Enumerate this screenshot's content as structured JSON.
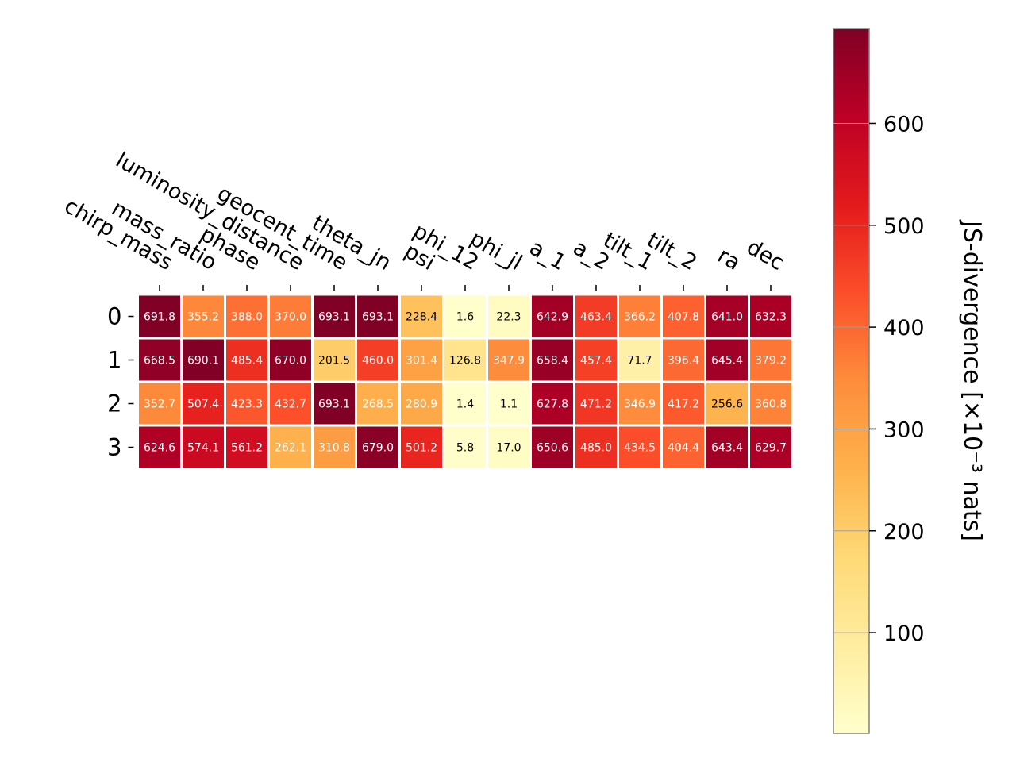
{
  "chart_data": {
    "type": "heatmap",
    "title": "",
    "columns": [
      "chirp_mass",
      "mass_ratio",
      "phase",
      "luminosity_distance",
      "geocent_time",
      "theta_jn",
      "psi",
      "phi_12",
      "phi_jl",
      "a_1",
      "a_2",
      "tilt_1",
      "tilt_2",
      "ra",
      "dec"
    ],
    "rows": [
      "0",
      "1",
      "2",
      "3"
    ],
    "values": [
      [
        691.8,
        355.2,
        388.0,
        370.0,
        693.1,
        693.1,
        228.4,
        1.6,
        22.3,
        642.9,
        463.4,
        366.2,
        407.8,
        641.0,
        632.3
      ],
      [
        668.5,
        690.1,
        485.4,
        670.0,
        201.5,
        460.0,
        301.4,
        126.8,
        347.9,
        658.4,
        457.4,
        71.7,
        396.4,
        645.4,
        379.2
      ],
      [
        352.7,
        507.4,
        423.3,
        432.7,
        693.1,
        268.5,
        280.9,
        1.4,
        1.1,
        627.8,
        471.2,
        346.9,
        417.2,
        256.6,
        360.8
      ],
      [
        624.6,
        574.1,
        561.2,
        262.1,
        310.8,
        679.0,
        501.2,
        5.8,
        17.0,
        650.6,
        485.0,
        434.5,
        404.4,
        643.4,
        629.7
      ]
    ],
    "value_labels": [
      [
        "691.8",
        "355.2",
        "388.0",
        "370.0",
        "693.1",
        "693.1",
        "228.4",
        "1.6",
        "22.3",
        "642.9",
        "463.4",
        "366.2",
        "407.8",
        "641.0",
        "632.3"
      ],
      [
        "668.5",
        "690.1",
        "485.4",
        "670.0",
        "201.5",
        "460.0",
        "301.4",
        "126.8",
        "347.9",
        "658.4",
        "457.4",
        "71.7",
        "396.4",
        "645.4",
        "379.2"
      ],
      [
        "352.7",
        "507.4",
        "423.3",
        "432.7",
        "693.1",
        "268.5",
        "280.9",
        "1.4",
        "1.1",
        "627.8",
        "471.2",
        "346.9",
        "417.2",
        "256.6",
        "360.8"
      ],
      [
        "624.6",
        "574.1",
        "561.2",
        "262.1",
        "310.8",
        "679.0",
        "501.2",
        "5.8",
        "17.0",
        "650.6",
        "485.0",
        "434.5",
        "404.4",
        "643.4",
        "629.7"
      ]
    ],
    "colormap": "YlOrRd",
    "vmin": 1.1,
    "vmax": 693.1,
    "colorbar": {
      "label": "JS-divergence [×10⁻³ nats]",
      "ticks": [
        100,
        200,
        300,
        400,
        500,
        600
      ],
      "tick_labels": [
        "100",
        "200",
        "300",
        "400",
        "500",
        "600"
      ],
      "position": "right"
    },
    "cell_text_colors": {
      "dark": "#000000",
      "light": "#ffffff"
    },
    "grid": false
  }
}
